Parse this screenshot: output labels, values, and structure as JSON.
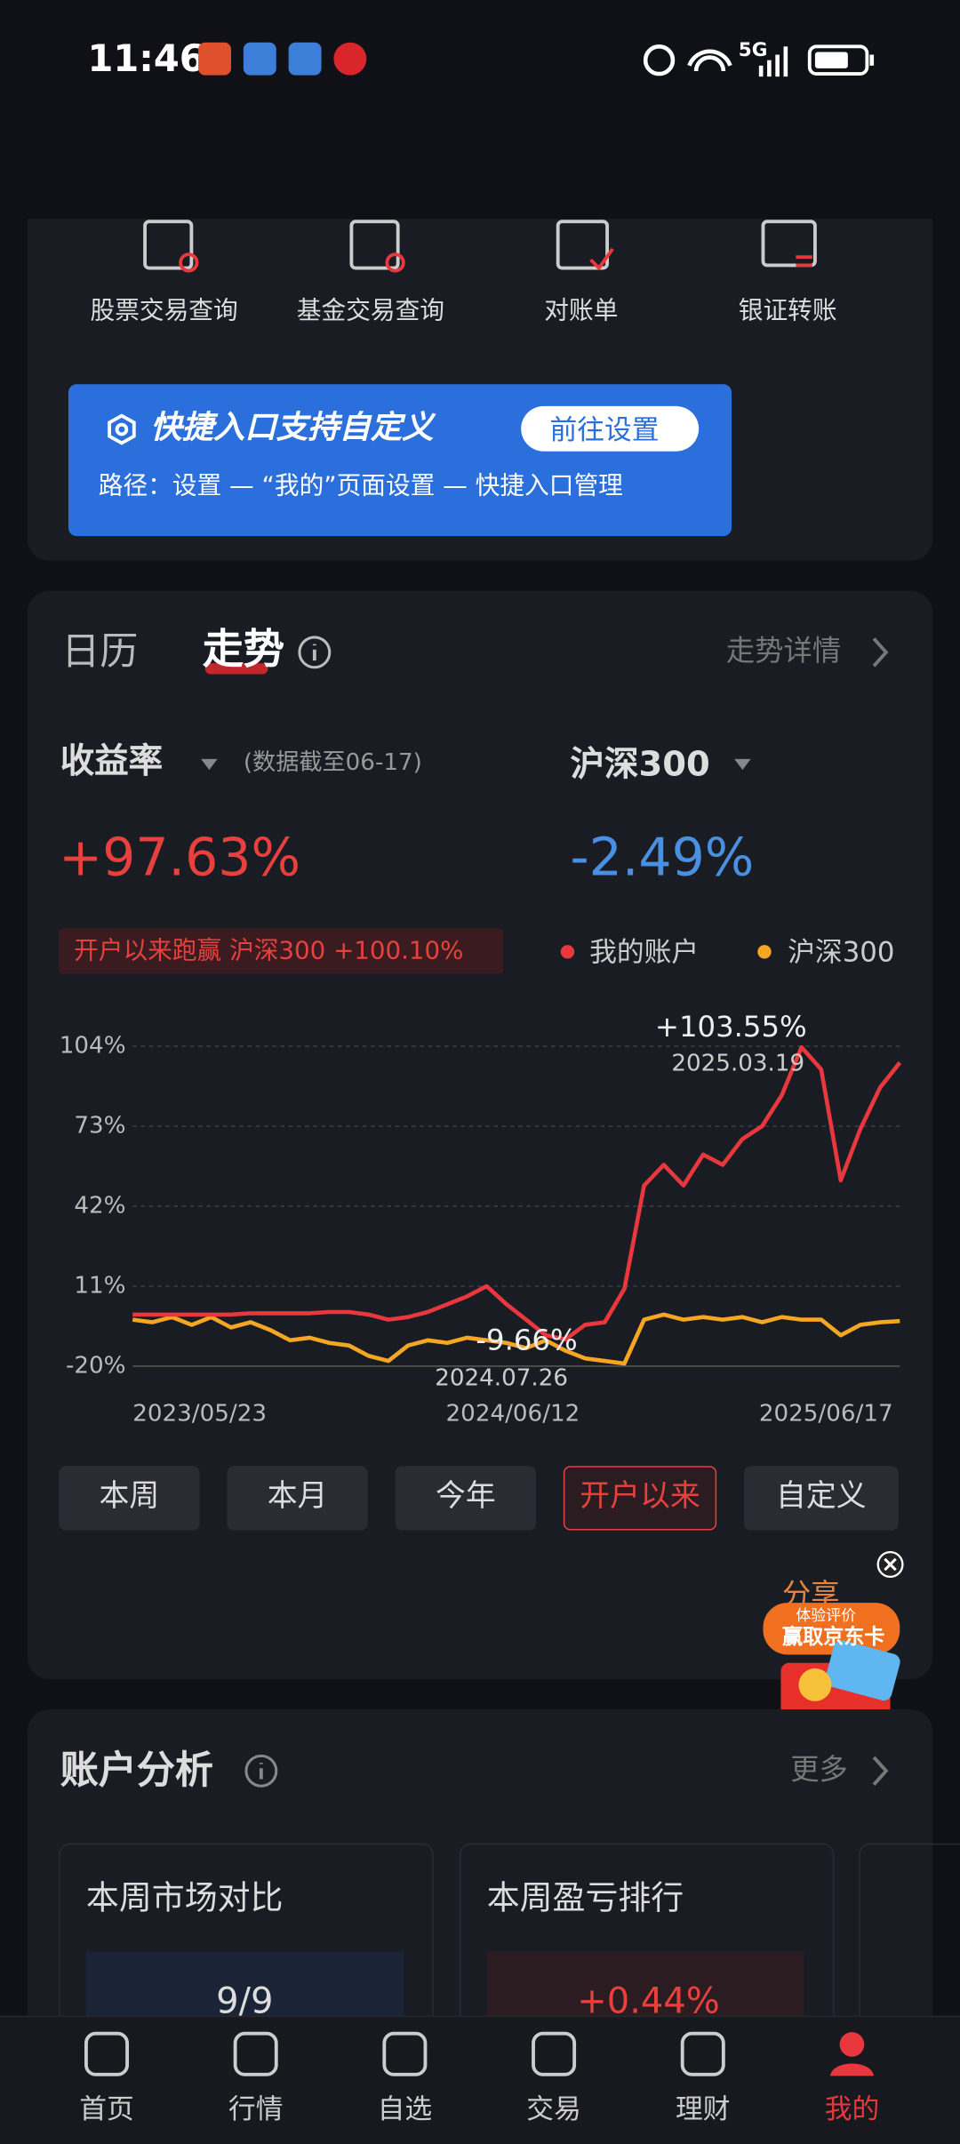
{
  "status_bar": {
    "time": "11:46",
    "network": "5G"
  },
  "shortcuts": [
    "股票交易查询",
    "基金交易查询",
    "对账单",
    "银证转账"
  ],
  "tip": {
    "title": "快捷入口支持自定义",
    "button": "前往设置",
    "path": "路径：设置 — “我的”页面设置 — 快捷入口管理"
  },
  "trend": {
    "tabs": [
      "日历",
      "走势"
    ],
    "detail": "走势详情",
    "metric_label": "收益率",
    "as_of": "(数据截至06-17)",
    "benchmark_label": "沪深300",
    "my_return": "+97.63%",
    "benchmark_return": "-2.49%",
    "beat": "开户以来跑赢 沪深300 +100.10%",
    "periods": [
      "本周",
      "本月",
      "今年",
      "开户以来",
      "自定义"
    ],
    "share": "分享",
    "promo": [
      "体验评价",
      "赢取京东卡"
    ]
  },
  "chart_data": {
    "type": "line",
    "ylim": [
      -20,
      104
    ],
    "yticks": [
      {
        "value": 104,
        "label": "104%"
      },
      {
        "value": 73,
        "label": "73%"
      },
      {
        "value": 42,
        "label": "42%"
      },
      {
        "value": 11,
        "label": "11%"
      },
      {
        "value": -20,
        "label": "-20%"
      }
    ],
    "grid": true,
    "x_labels": [
      "2023/05/23",
      "2024/06/12",
      "2025/06/17"
    ],
    "annotations": [
      {
        "label": "+103.55%",
        "date": "2025.03.19"
      },
      {
        "label": "-9.66%",
        "date": "2024.07.26"
      }
    ],
    "series": [
      {
        "name": "我的账户",
        "color": "#e8383d",
        "values": [
          0,
          0,
          0,
          0,
          0,
          0,
          0.5,
          0.5,
          0.5,
          0.5,
          1,
          1,
          0,
          -2,
          -1,
          1,
          4,
          7,
          11,
          4,
          -2,
          -8,
          -9.66,
          -4,
          -3,
          10,
          50,
          58,
          50,
          62,
          58,
          68,
          73,
          85,
          103.55,
          95,
          52,
          72,
          88,
          97.63
        ]
      },
      {
        "name": "沪深300",
        "color": "#f5a623",
        "values": [
          -2,
          -3,
          -1,
          -4,
          -1,
          -5,
          -3,
          -6,
          -10,
          -9,
          -11,
          -12,
          -16,
          -18,
          -12,
          -10,
          -11,
          -9,
          -10,
          -11,
          -13,
          -10,
          -14,
          -17,
          -18,
          -19,
          -2,
          0,
          -2,
          -1,
          -2,
          -1,
          -3,
          -1,
          -2,
          -2,
          -8,
          -4,
          -3,
          -2.49
        ]
      }
    ]
  },
  "analysis": {
    "title": "账户分析",
    "more": "更多",
    "cards": [
      {
        "title": "本周市场对比",
        "value": "9/9"
      },
      {
        "title": "本周盈亏排行",
        "value": "+0.44%"
      }
    ]
  },
  "nav": [
    "首页",
    "行情",
    "自选",
    "交易",
    "理财",
    "我的"
  ]
}
